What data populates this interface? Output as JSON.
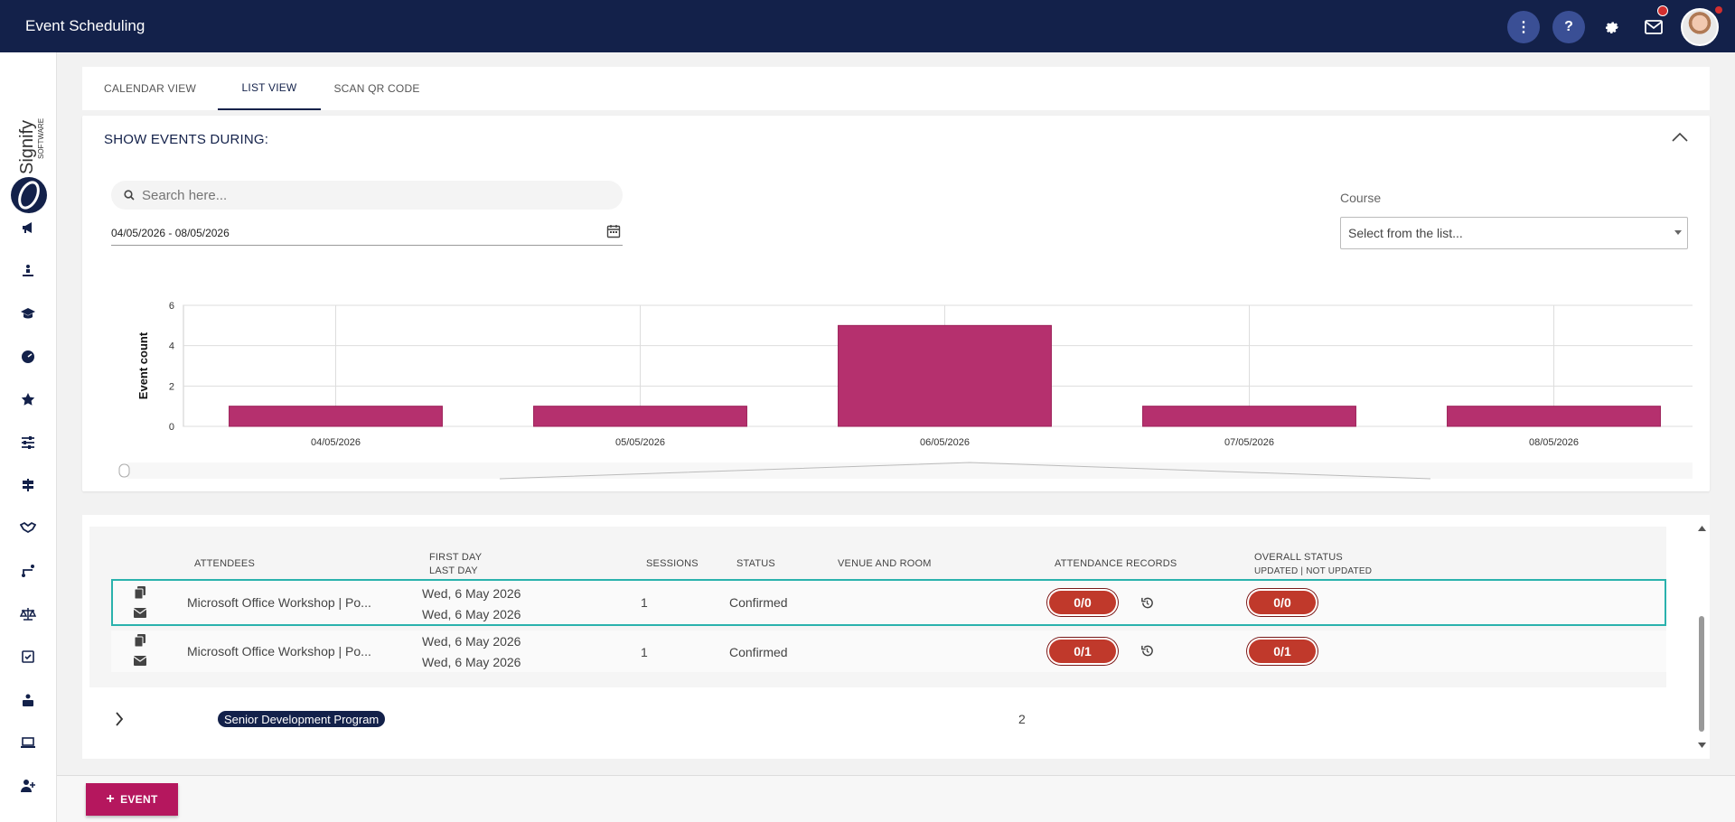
{
  "app": {
    "title": "Event Scheduling"
  },
  "topbar": {
    "icons": [
      "more-vertical-icon",
      "help-icon",
      "gear-icon",
      "mail-icon",
      "avatar"
    ]
  },
  "sidebar": {
    "logo_text": "Signify",
    "logo_subtext": "SOFTWARE",
    "items": [
      "megaphone-icon",
      "person-lift-icon",
      "graduation-cap-icon",
      "dashboard-icon",
      "star-icon",
      "sliders-icon",
      "signpost-icon",
      "handshake-icon",
      "route-icon",
      "scale-icon",
      "checkbox-icon",
      "user-desk-icon",
      "laptop-icon",
      "user-plus-icon"
    ]
  },
  "tabs": [
    {
      "label": "CALENDAR VIEW",
      "active": false
    },
    {
      "label": "LIST VIEW",
      "active": true
    },
    {
      "label": "SCAN QR CODE",
      "active": false
    }
  ],
  "filters": {
    "title": "SHOW EVENTS DURING:",
    "search_placeholder": "Search here...",
    "date_range": "04/05/2026 - 08/05/2026",
    "course_label": "Course",
    "course_placeholder": "Select from the list..."
  },
  "chart_data": {
    "type": "bar",
    "categories": [
      "04/05/2026",
      "05/05/2026",
      "06/05/2026",
      "07/05/2026",
      "08/05/2026"
    ],
    "values": [
      1,
      1,
      5,
      1,
      1
    ],
    "ylabel": "Event count",
    "xlabel": "",
    "ylim": [
      0,
      6
    ],
    "yticks": [
      0,
      2,
      4,
      6
    ],
    "bar_color": "#b5306e",
    "grid": true
  },
  "table": {
    "headers": {
      "attendees": "ATTENDEES",
      "first_day": "FIRST DAY",
      "last_day": "LAST DAY",
      "sessions": "SESSIONS",
      "status": "STATUS",
      "venue": "VENUE AND ROOM",
      "attendance": "ATTENDANCE RECORDS",
      "overall": "OVERALL STATUS",
      "overall_sub": "UPDATED | NOT UPDATED"
    },
    "rows": [
      {
        "name": "Microsoft Office Workshop | Po...",
        "first_day": "Wed, 6 May 2026",
        "last_day": "Wed, 6 May 2026",
        "sessions": "1",
        "status": "Confirmed",
        "attendance": "0/0",
        "overall": "0/0",
        "selected": true
      },
      {
        "name": "Microsoft Office Workshop | Po...",
        "first_day": "Wed, 6 May 2026",
        "last_day": "Wed, 6 May 2026",
        "sessions": "1",
        "status": "Confirmed",
        "attendance": "0/1",
        "overall": "0/1",
        "selected": false
      }
    ],
    "group": {
      "label": "Senior Development Program",
      "count": "2"
    }
  },
  "footer": {
    "add_button": "EVENT"
  },
  "colors": {
    "navy": "#13214a",
    "accent": "#b5175e",
    "pill": "#c0392b",
    "teal": "#2ab2ad"
  }
}
